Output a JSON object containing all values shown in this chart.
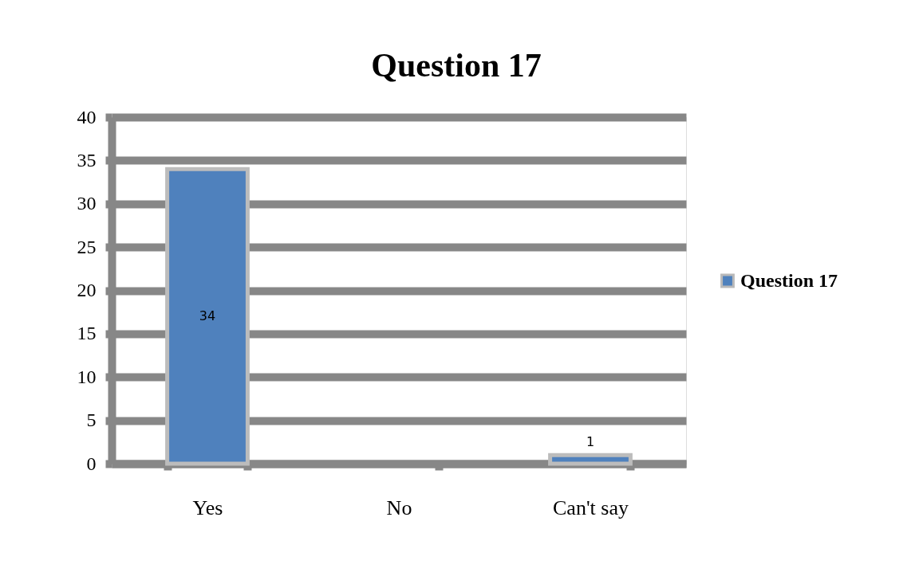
{
  "chart_data": {
    "type": "bar",
    "title": "Question 17",
    "categories": [
      "Yes",
      "No",
      "Can't say"
    ],
    "series": [
      {
        "name": "Question 17",
        "color": "#4f81bd",
        "values": [
          34,
          0,
          1
        ],
        "value_labels": [
          "34",
          null,
          "1"
        ]
      }
    ],
    "ylim": [
      0,
      40
    ],
    "yticks": [
      0,
      5,
      10,
      15,
      20,
      25,
      30,
      35,
      40
    ],
    "grid": "y",
    "legend": "right"
  }
}
